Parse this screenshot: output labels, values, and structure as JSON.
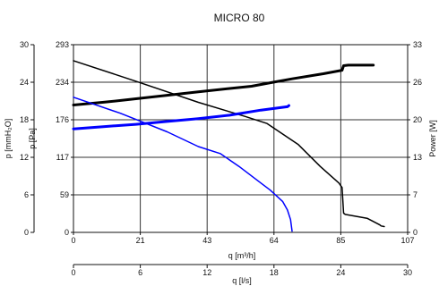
{
  "chart_data": {
    "type": "line",
    "title": "MICRO 80",
    "x_axes": {
      "primary": {
        "label": "q [m³/h]",
        "range": [
          0,
          107
        ],
        "ticks": [
          "0",
          "21",
          "43",
          "64",
          "85",
          "107"
        ]
      },
      "secondary": {
        "label": "q [l/s]",
        "range": [
          0,
          30
        ],
        "ticks": [
          "0",
          "6",
          "12",
          "18",
          "24",
          "30"
        ]
      }
    },
    "y_axes": {
      "mmH2O": {
        "label": "p  [mmH₂O]",
        "range": [
          0,
          30
        ],
        "ticks": [
          "0",
          "6",
          "12",
          "18",
          "24",
          "30"
        ]
      },
      "Pa": {
        "label": "p  [Pa]",
        "range": [
          0,
          293
        ],
        "ticks": [
          "0",
          "59",
          "117",
          "176",
          "234",
          "293"
        ]
      },
      "power": {
        "label": "Power [W]",
        "range": [
          0,
          33
        ],
        "ticks": [
          "0",
          "7",
          "13",
          "20",
          "26",
          "33"
        ]
      }
    },
    "grid": true,
    "series": [
      {
        "axis": "pressure_pa",
        "color": "#000000",
        "width": 1.5,
        "points": [
          [
            0,
            268
          ],
          [
            20,
            236
          ],
          [
            40,
            203
          ],
          [
            55,
            181
          ],
          [
            62,
            170
          ],
          [
            72,
            137
          ],
          [
            79,
            103
          ],
          [
            85,
            77
          ],
          [
            86,
            70
          ],
          [
            86.5,
            30
          ],
          [
            87,
            28
          ],
          [
            94,
            22
          ],
          [
            96,
            17
          ],
          [
            98,
            12
          ],
          [
            98.5,
            10
          ],
          [
            99.5,
            9
          ]
        ]
      },
      {
        "axis": "power_w",
        "color": "#000000",
        "width": 3,
        "points": [
          [
            0,
            22.4
          ],
          [
            10,
            22.9
          ],
          [
            20,
            23.5
          ],
          [
            30,
            24.1
          ],
          [
            40,
            24.7
          ],
          [
            50,
            25.3
          ],
          [
            57,
            25.7
          ],
          [
            63,
            26.3
          ],
          [
            70,
            27.0
          ],
          [
            80,
            27.9
          ],
          [
            86,
            28.5
          ],
          [
            86.5,
            29.3
          ],
          [
            88,
            29.4
          ],
          [
            95,
            29.4
          ],
          [
            96,
            29.4
          ]
        ]
      },
      {
        "axis": "pressure_pa",
        "color": "#0000ff",
        "width": 1.5,
        "points": [
          [
            0,
            211
          ],
          [
            15,
            186
          ],
          [
            30,
            157
          ],
          [
            40,
            134
          ],
          [
            47,
            123
          ],
          [
            53,
            103
          ],
          [
            60,
            77
          ],
          [
            63,
            66
          ],
          [
            67,
            48
          ],
          [
            68.5,
            35
          ],
          [
            69.5,
            20
          ],
          [
            70,
            2
          ]
        ]
      },
      {
        "axis": "power_w",
        "color": "#0000ff",
        "width": 3,
        "points": [
          [
            0,
            18.2
          ],
          [
            10,
            18.6
          ],
          [
            20,
            19.0
          ],
          [
            30,
            19.5
          ],
          [
            40,
            20.0
          ],
          [
            50,
            20.6
          ],
          [
            60,
            21.5
          ],
          [
            68.5,
            22.1
          ],
          [
            69,
            22.3
          ]
        ]
      }
    ]
  }
}
